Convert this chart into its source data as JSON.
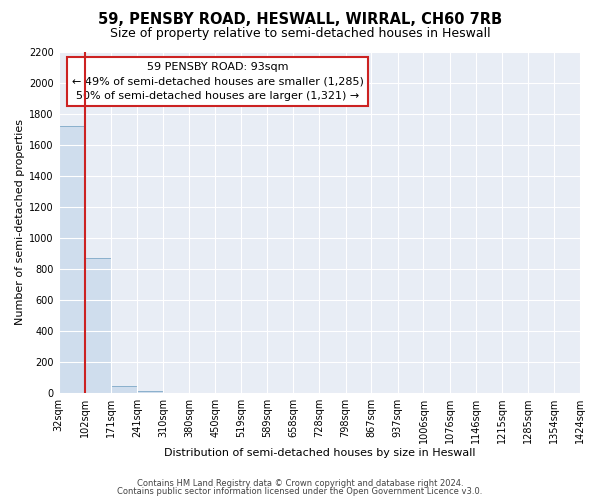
{
  "title": "59, PENSBY ROAD, HESWALL, WIRRAL, CH60 7RB",
  "subtitle": "Size of property relative to semi-detached houses in Heswall",
  "xlabel": "Distribution of semi-detached houses by size in Heswall",
  "ylabel": "Number of semi-detached properties",
  "footer_line1": "Contains HM Land Registry data © Crown copyright and database right 2024.",
  "footer_line2": "Contains public sector information licensed under the Open Government Licence v3.0.",
  "annotation_title": "59 PENSBY ROAD: 93sqm",
  "annotation_line1": "← 49% of semi-detached houses are smaller (1,285)",
  "annotation_line2": "50% of semi-detached houses are larger (1,321) →",
  "property_size": 93,
  "bar_edges": [
    32,
    102,
    171,
    241,
    310,
    380,
    450,
    519,
    589,
    658,
    728,
    798,
    867,
    937,
    1006,
    1076,
    1146,
    1215,
    1285,
    1354,
    1424
  ],
  "bar_heights": [
    1720,
    870,
    45,
    10,
    0,
    0,
    0,
    0,
    0,
    0,
    0,
    0,
    0,
    0,
    0,
    0,
    0,
    0,
    0,
    0
  ],
  "bar_color": "#cfdded",
  "bar_edge_color": "#8ab0cc",
  "red_line_x": 102,
  "ylim": [
    0,
    2200
  ],
  "yticks": [
    0,
    200,
    400,
    600,
    800,
    1000,
    1200,
    1400,
    1600,
    1800,
    2000,
    2200
  ],
  "fig_bg_color": "#ffffff",
  "plot_bg_color": "#e8edf5",
  "grid_color": "#ffffff",
  "annotation_box_facecolor": "#ffffff",
  "annotation_box_edgecolor": "#cc2222",
  "title_fontsize": 10.5,
  "subtitle_fontsize": 9,
  "axis_label_fontsize": 8,
  "tick_fontsize": 7,
  "annotation_fontsize": 8
}
